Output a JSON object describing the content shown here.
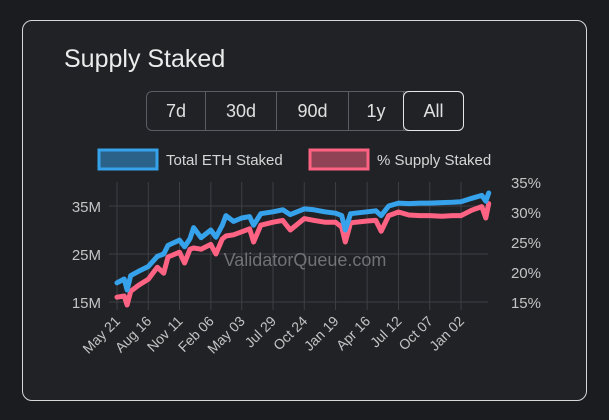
{
  "title": "Supply Staked",
  "range_buttons": [
    {
      "label": "7d",
      "active": false
    },
    {
      "label": "30d",
      "active": false
    },
    {
      "label": "90d",
      "active": false
    },
    {
      "label": "1y",
      "active": false
    },
    {
      "label": "All",
      "active": true
    }
  ],
  "watermark": "ValidatorQueue.com",
  "chart_data": {
    "type": "line",
    "title": "Supply Staked",
    "grid": true,
    "legend_placement": "top",
    "x_tick_labels": [
      "May 21",
      "Aug 16",
      "Nov 11",
      "Feb 06",
      "May 03",
      "Jul 29",
      "Oct 24",
      "Jan 19",
      "Apr 16",
      "Jul 12",
      "Oct 07",
      "Jan 02"
    ],
    "x_tick_dates": [
      "2022-05-21",
      "2022-08-16",
      "2022-11-11",
      "2023-02-06",
      "2023-05-03",
      "2023-07-29",
      "2023-10-24",
      "2024-01-19",
      "2024-04-16",
      "2024-07-12",
      "2024-10-07",
      "2025-01-02"
    ],
    "y_left": {
      "ticks": [
        "15M",
        "25M",
        "35M"
      ],
      "tick_values": [
        15,
        25,
        35
      ],
      "range": [
        15,
        40
      ],
      "unit": "M"
    },
    "y_right": {
      "ticks": [
        "15%",
        "20%",
        "25%",
        "30%",
        "35%"
      ],
      "tick_values": [
        15,
        20,
        25,
        30,
        35
      ],
      "range": [
        15,
        35
      ],
      "unit": "%"
    },
    "x": [
      "2022-05-21",
      "2022-06-10",
      "2022-06-18",
      "2022-06-28",
      "2022-07-20",
      "2022-08-16",
      "2022-09-10",
      "2022-09-28",
      "2022-10-10",
      "2022-11-11",
      "2022-11-25",
      "2022-12-10",
      "2022-12-20",
      "2023-01-10",
      "2023-02-06",
      "2023-02-20",
      "2023-03-10",
      "2023-03-20",
      "2023-04-10",
      "2023-05-03",
      "2023-05-25",
      "2023-06-05",
      "2023-06-25",
      "2023-07-29",
      "2023-08-25",
      "2023-09-15",
      "2023-10-24",
      "2023-11-20",
      "2023-12-20",
      "2024-01-19",
      "2024-02-05",
      "2024-02-15",
      "2024-03-01",
      "2024-04-16",
      "2024-05-10",
      "2024-05-25",
      "2024-06-15",
      "2024-07-12",
      "2024-08-10",
      "2024-09-10",
      "2024-10-07",
      "2024-11-10",
      "2024-12-10",
      "2025-01-02",
      "2025-02-01",
      "2025-03-01",
      "2025-03-12",
      "2025-03-20"
    ],
    "series": [
      {
        "name": "Total ETH Staked",
        "axis": "left",
        "color": "#36a2eb",
        "values": [
          19.0,
          19.8,
          17.5,
          20.5,
          21.4,
          22.4,
          24.5,
          25.0,
          26.8,
          27.9,
          26.5,
          28.2,
          30.5,
          28.4,
          30.0,
          28.5,
          31.0,
          33.0,
          31.8,
          32.5,
          32.8,
          31.0,
          33.4,
          33.8,
          34.2,
          33.2,
          34.4,
          34.2,
          33.8,
          33.5,
          33.0,
          30.0,
          33.4,
          33.8,
          34.0,
          33.0,
          35.0,
          35.6,
          35.5,
          35.6,
          35.6,
          35.7,
          35.8,
          35.9,
          36.6,
          37.2,
          36.0,
          37.7
        ]
      },
      {
        "name": "% Supply Staked",
        "axis": "right",
        "color": "#ff6384",
        "values": [
          15.8,
          16.0,
          14.5,
          16.8,
          17.8,
          18.8,
          20.8,
          19.8,
          22.5,
          23.3,
          21.5,
          23.8,
          24.0,
          23.8,
          24.6,
          23.0,
          25.5,
          26.0,
          26.2,
          26.7,
          27.2,
          25.0,
          27.8,
          28.3,
          28.6,
          27.0,
          28.9,
          28.6,
          28.3,
          28.3,
          27.5,
          25.0,
          28.2,
          28.5,
          28.6,
          26.8,
          29.4,
          30.0,
          29.5,
          29.4,
          29.4,
          29.3,
          29.4,
          29.4,
          30.3,
          30.9,
          29.0,
          31.4
        ]
      }
    ]
  }
}
